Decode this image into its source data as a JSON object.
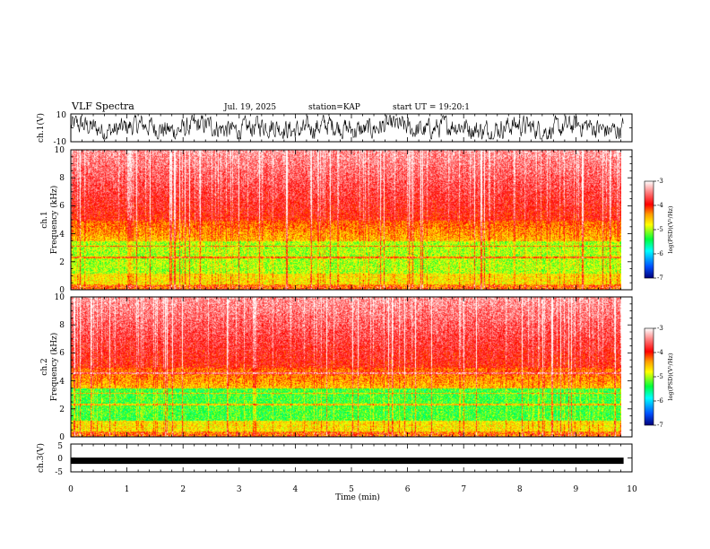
{
  "header": {
    "title": "VLF Spectra",
    "date": "Jul. 19, 2025",
    "station": "station=KAP",
    "start": "start UT =  19:20:1"
  },
  "colors": {
    "background": "#ffffff",
    "axis": "#000000",
    "colormap": [
      "#00007a",
      "#0050ff",
      "#00ffff",
      "#00ff3c",
      "#ffff00",
      "#ff9a00",
      "#ff0000",
      "#ff7a7a",
      "#ffffff"
    ]
  },
  "chart_data": [
    {
      "type": "line",
      "name": "ch1-waveform",
      "ylabel": "ch.1(V)",
      "ylim": [
        -10,
        10
      ],
      "yticks": [
        "10",
        "-10"
      ],
      "xlim": [
        0,
        10
      ],
      "x_extent": 9.85,
      "amplitude": [
        -8,
        9
      ]
    },
    {
      "type": "heatmap",
      "name": "ch1-spectrogram",
      "ylabel": "ch.1\nFrequency (kHz)",
      "ylim": [
        0,
        10
      ],
      "yticks": [
        "0",
        "2",
        "4",
        "6",
        "8",
        "10"
      ],
      "xlim": [
        0,
        10
      ],
      "x_extent": 9.85,
      "colorbar": {
        "label": "log(PSD)(V²/Hz)",
        "range": [
          -7,
          -3
        ],
        "ticks": [
          "-3",
          "-4",
          "-5",
          "-6",
          "-7"
        ]
      }
    },
    {
      "type": "heatmap",
      "name": "ch2-spectrogram",
      "ylabel": "ch.2\nFrequency (kHz)",
      "ylim": [
        0,
        10
      ],
      "yticks": [
        "0",
        "2",
        "4",
        "6",
        "8",
        "10"
      ],
      "xlim": [
        0,
        10
      ],
      "x_extent": 9.85,
      "colorbar": {
        "label": "log(PSD)(V²/Hz)",
        "range": [
          -7,
          -3
        ],
        "ticks": [
          "-3",
          "-4",
          "-5",
          "-6",
          "-7"
        ]
      }
    },
    {
      "type": "line",
      "name": "ch3-waveform",
      "ylabel": "ch.3(V)",
      "ylim": [
        -5,
        5
      ],
      "yticks": [
        "5",
        "0",
        "-5"
      ],
      "xlim": [
        0,
        10
      ],
      "x_extent": 9.85,
      "level": -1,
      "xlabel": "Time (min)",
      "xticks": [
        "0",
        "1",
        "2",
        "3",
        "4",
        "5",
        "6",
        "7",
        "8",
        "9",
        "10"
      ]
    }
  ]
}
